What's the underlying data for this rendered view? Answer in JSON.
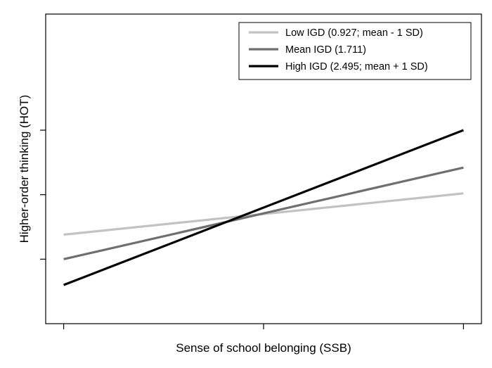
{
  "chart_data": {
    "type": "line",
    "title": "",
    "xlabel": "Sense of school belonging (SSB)",
    "ylabel": "Higher-order thinking (HOT)",
    "xlim": [
      -1.09,
      1.09
    ],
    "ylim": [
      -1.2,
      1.2
    ],
    "x_ticks": [
      -1,
      0,
      1
    ],
    "y_ticks": [
      -0.7,
      -0.2,
      0.3
    ],
    "x_tick_labels_shown": false,
    "y_tick_labels_shown": false,
    "grid": false,
    "legend_position": "top-right",
    "series": [
      {
        "name": "Low IGD (0.927; mean - 1 SD)",
        "color": "#c2c2c2",
        "x": [
          -1,
          1
        ],
        "y": [
          -0.51,
          -0.19
        ]
      },
      {
        "name": "Mean IGD (1.711)",
        "color": "#6f6f6f",
        "x": [
          -1,
          1
        ],
        "y": [
          -0.7,
          0.01
        ]
      },
      {
        "name": "High IGD (2.495; mean + 1 SD)",
        "color": "#000000",
        "x": [
          -1,
          1
        ],
        "y": [
          -0.9,
          0.3
        ]
      }
    ]
  }
}
